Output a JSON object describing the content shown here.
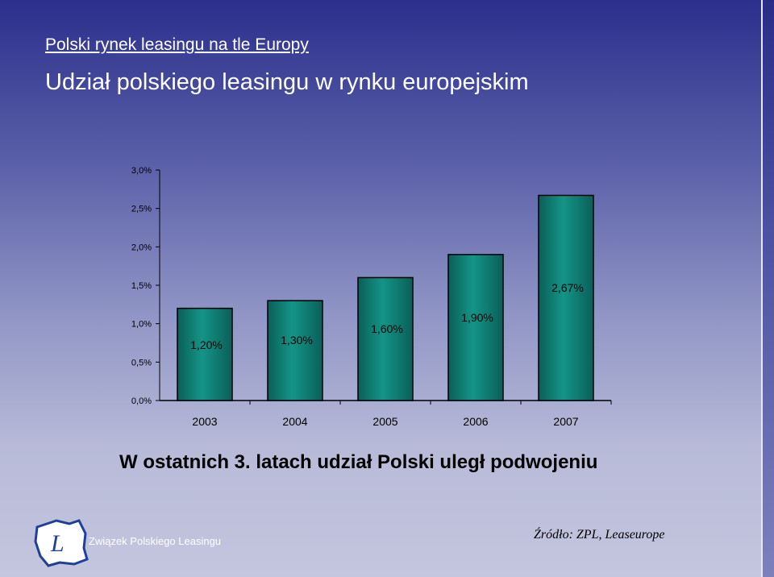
{
  "header": {
    "link_title": "Polski rynek leasingu na tle Europy",
    "title": "Udział polskiego leasingu w rynku europejskim"
  },
  "chart_data": {
    "type": "bar",
    "categories": [
      "2003",
      "2004",
      "2005",
      "2006",
      "2007"
    ],
    "values": [
      1.2,
      1.3,
      1.6,
      1.9,
      2.67
    ],
    "data_labels": [
      "1,20%",
      "1,30%",
      "1,60%",
      "1,90%",
      "2,67%"
    ],
    "y_ticks": [
      "0,0%",
      "0,5%",
      "1,0%",
      "1,5%",
      "2,0%",
      "2,5%",
      "3,0%"
    ],
    "ylim": [
      0,
      3
    ],
    "xlabel": "",
    "ylabel": "",
    "grid": false,
    "bar_color": "#0b7a70"
  },
  "subtitle": "W ostatnich 3. latach udział Polski uległ podwojeniu",
  "logo": {
    "text": "Związek Polskiego Leasingu",
    "icon": "zpl-logo-icon"
  },
  "source": "Źródło: ZPL, Leaseurope"
}
